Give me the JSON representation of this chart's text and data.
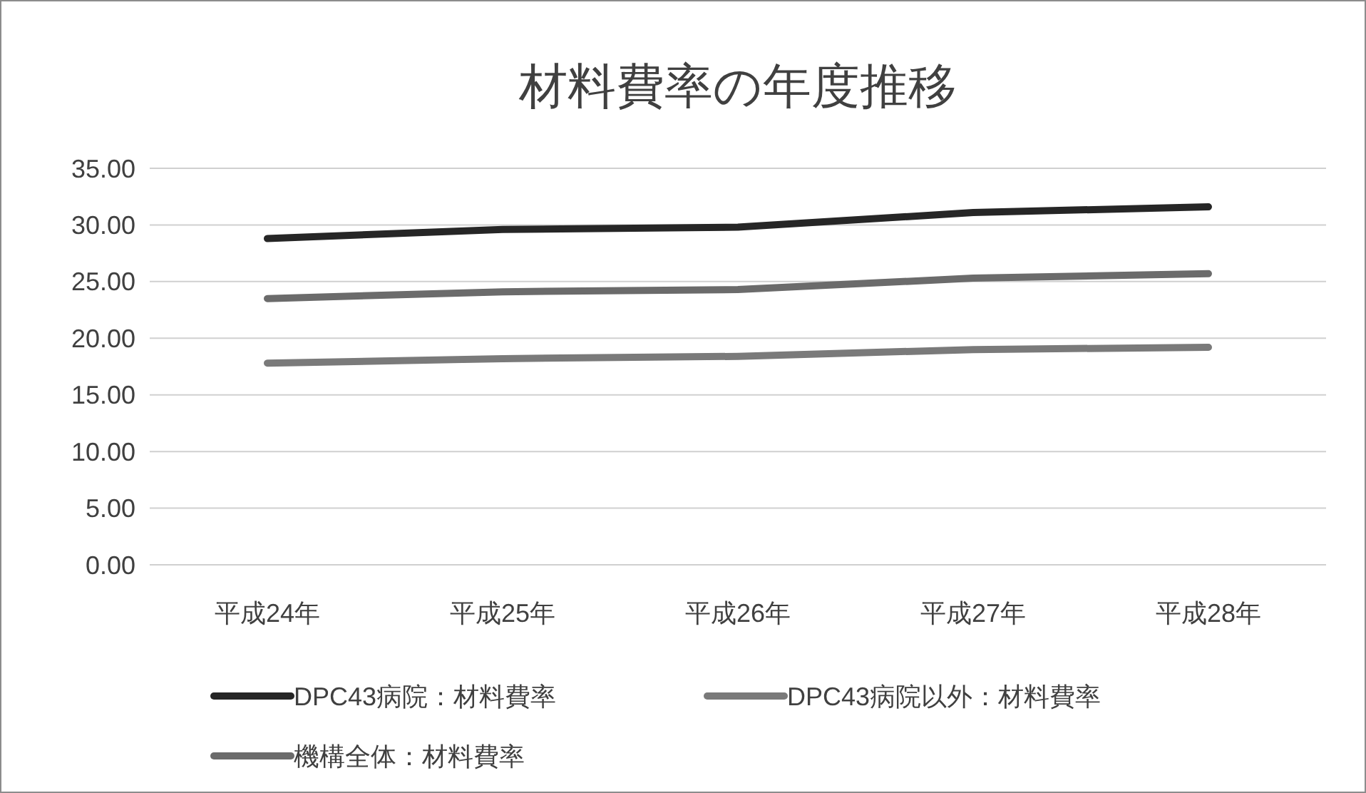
{
  "chart_data": {
    "type": "line",
    "title": "材料費率の年度推移",
    "categories": [
      "平成24年",
      "平成25年",
      "平成26年",
      "平成27年",
      "平成28年"
    ],
    "series": [
      {
        "name": "DPC43病院：材料費率",
        "color": "#262626",
        "values": [
          28.8,
          29.6,
          29.8,
          31.1,
          31.6
        ]
      },
      {
        "name": "DPC43病院以外：材料費率",
        "color": "#7a7a7a",
        "values": [
          17.8,
          18.2,
          18.4,
          19.0,
          19.2
        ]
      },
      {
        "name": "機構全体：材料費率",
        "color": "#6b6b6b",
        "values": [
          23.5,
          24.1,
          24.3,
          25.3,
          25.7
        ]
      }
    ],
    "ylim": [
      0,
      35
    ],
    "yticks": [
      {
        "value": 0,
        "label": "0.00"
      },
      {
        "value": 5,
        "label": "5.00"
      },
      {
        "value": 10,
        "label": "10.00"
      },
      {
        "value": 15,
        "label": "15.00"
      },
      {
        "value": 20,
        "label": "20.00"
      },
      {
        "value": 25,
        "label": "25.00"
      },
      {
        "value": 30,
        "label": "30.00"
      },
      {
        "value": 35,
        "label": "35.00"
      }
    ],
    "grid": "y",
    "legend": "bottom",
    "marker": "none",
    "line_style": "solid"
  }
}
